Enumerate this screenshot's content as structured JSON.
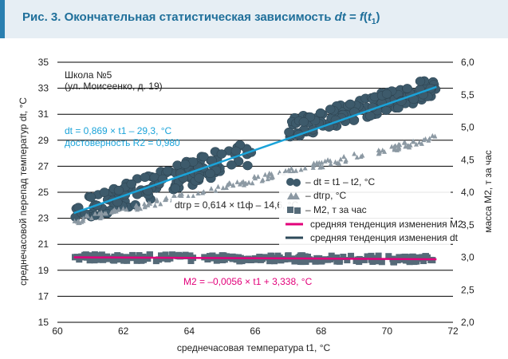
{
  "header": {
    "title_prefix": "Рис. 3. Окончательная статистическая зависимость ",
    "formula_dt": "dt",
    "formula_eq": " = ",
    "formula_f": "f",
    "formula_open": "(",
    "formula_t": "t",
    "formula_sub": "1",
    "formula_close": ")"
  },
  "chart_data": {
    "type": "scatter",
    "xlabel": "среднечасовая температура t1,  °С",
    "ylabel_left": "среднечасовой перепад температур dt, °С",
    "ylabel_right": "масса M2, т за час",
    "xlim": [
      60,
      72
    ],
    "ylim_left": [
      15,
      35
    ],
    "ylim_right": [
      2.0,
      6.0
    ],
    "x_ticks": [
      60,
      62,
      64,
      66,
      68,
      70,
      72
    ],
    "y_ticks_left": [
      15,
      17,
      19,
      21,
      23,
      25,
      27,
      29,
      31,
      33,
      35
    ],
    "y_ticks_right": [
      "2,0",
      "2,5",
      "3,0",
      "3,5",
      "4,0",
      "4,5",
      "5,0",
      "5,5",
      "6,0"
    ],
    "grid": "horizontal",
    "legend_position": "right-middle",
    "site_label_line1": "Школа №5",
    "site_label_line2": "(ул. Моисеенко, д. 19)",
    "colors": {
      "dt_points": "#3d5a6b",
      "dt_trend": "#1aa3d9",
      "dtgr_points": "#8c99a3",
      "m2_points": "#556a78",
      "m2_trend": "#e2007a",
      "dt_legend_line": "#2d4a5a"
    },
    "series": [
      {
        "name": "dt = t1 – t2, °С",
        "axis": "left",
        "marker": "circle",
        "segments": [
          {
            "x": [
              60.5,
              65.9
            ],
            "trend_y": [
              23.4,
              28.1
            ],
            "spread": 1.0
          },
          {
            "x": [
              67.0,
              71.5
            ],
            "trend_y": [
              29.8,
              33.1
            ],
            "spread": 0.8
          }
        ]
      },
      {
        "name": "dtгр, °С",
        "axis": "left",
        "marker": "triangle",
        "segments": [
          {
            "x": [
              60.5,
              71.5
            ],
            "trend_y": [
              22.8,
              29.2
            ],
            "spread": 0.25
          }
        ]
      },
      {
        "name": "M2, т за час",
        "axis": "right",
        "marker": "square",
        "segments": [
          {
            "x": [
              60.5,
              71.5
            ],
            "trend_y": [
              3.0,
              2.97
            ],
            "spread": 0.05
          }
        ]
      }
    ],
    "trend_lines": [
      {
        "name": "средняя тенденция изменения M2",
        "axis": "right",
        "x": [
          60.5,
          71.5
        ],
        "y": [
          3.0,
          2.97
        ]
      },
      {
        "name": "средняя тенденция изменения dt",
        "axis": "left",
        "x": [
          60.5,
          71.5
        ],
        "y": [
          23.4,
          33.1
        ]
      }
    ],
    "annotations": {
      "dt_formula": "dt = 0,869 × t1 – 29,3, °С",
      "dt_confidence": "достоверность R2 = 0,980",
      "dtgr_formula": "dtгр = 0,614 × t1ф – 14,6, °С",
      "m2_formula": "M2 = –0,0056 × t1 + 3,338, °С"
    },
    "legend": [
      {
        "label": "– dt = t1 – t2, °С",
        "marker": "circle"
      },
      {
        "label": "– dtгр, °С",
        "marker": "triangle"
      },
      {
        "label": "– M2, т за час",
        "marker": "square"
      },
      {
        "label": "средняя тенденция изменения M2",
        "marker": "line-magenta"
      },
      {
        "label": "средняя тенденция изменения dt",
        "marker": "line-dark"
      }
    ]
  }
}
